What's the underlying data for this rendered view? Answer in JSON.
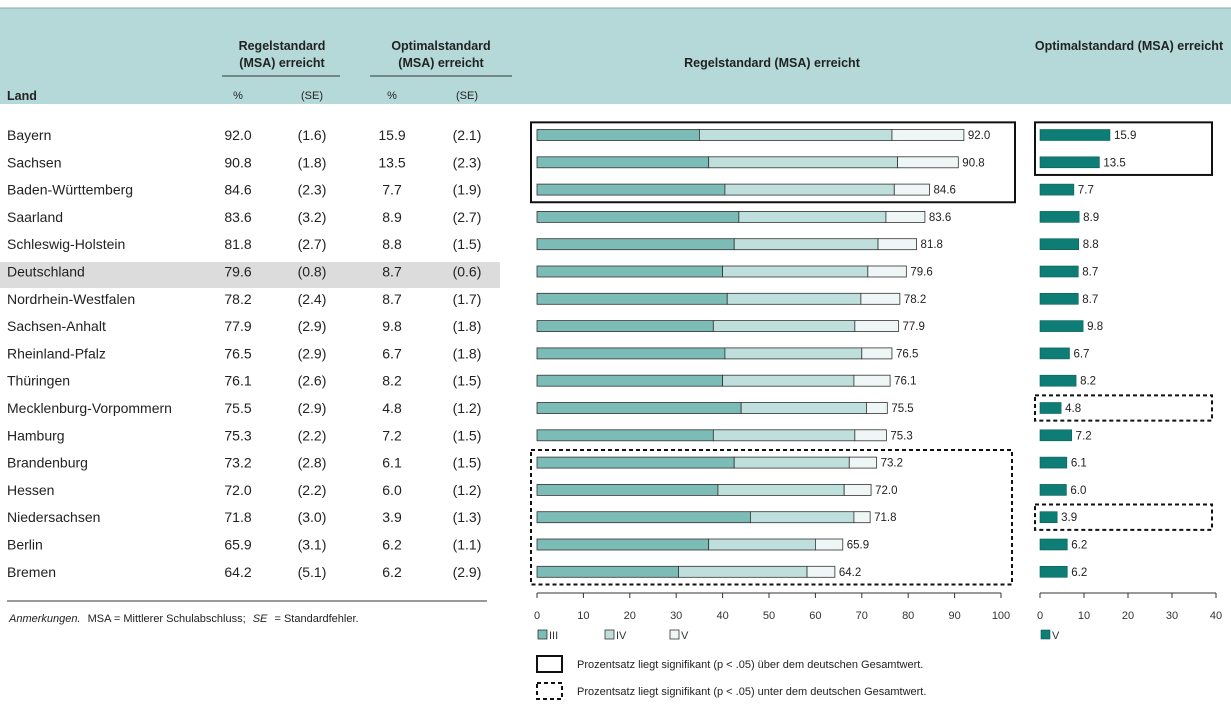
{
  "table": {
    "col_land": "Land",
    "col_regel": [
      "Regelstandard",
      "(MSA) erreicht"
    ],
    "col_optimal": [
      "Optimalstandard",
      "(MSA) erreicht"
    ],
    "pct": "%",
    "se": "(SE)",
    "highlight_row": "Deutschland",
    "rows": [
      {
        "land": "Bayern",
        "regel": "92.0",
        "regel_se": "(1.6)",
        "opt": "15.9",
        "opt_se": "(2.1)"
      },
      {
        "land": "Sachsen",
        "regel": "90.8",
        "regel_se": "(1.8)",
        "opt": "13.5",
        "opt_se": "(2.3)"
      },
      {
        "land": "Baden-Württemberg",
        "regel": "84.6",
        "regel_se": "(2.3)",
        "opt": "7.7",
        "opt_se": "(1.9)"
      },
      {
        "land": "Saarland",
        "regel": "83.6",
        "regel_se": "(3.2)",
        "opt": "8.9",
        "opt_se": "(2.7)"
      },
      {
        "land": "Schleswig-Holstein",
        "regel": "81.8",
        "regel_se": "(2.7)",
        "opt": "8.8",
        "opt_se": "(1.5)"
      },
      {
        "land": "Deutschland",
        "regel": "79.6",
        "regel_se": "(0.8)",
        "opt": "8.7",
        "opt_se": "(0.6)"
      },
      {
        "land": "Nordrhein-Westfalen",
        "regel": "78.2",
        "regel_se": "(2.4)",
        "opt": "8.7",
        "opt_se": "(1.7)"
      },
      {
        "land": "Sachsen-Anhalt",
        "regel": "77.9",
        "regel_se": "(2.9)",
        "opt": "9.8",
        "opt_se": "(1.8)"
      },
      {
        "land": "Rheinland-Pfalz",
        "regel": "76.5",
        "regel_se": "(2.9)",
        "opt": "6.7",
        "opt_se": "(1.8)"
      },
      {
        "land": "Thüringen",
        "regel": "76.1",
        "regel_se": "(2.6)",
        "opt": "8.2",
        "opt_se": "(1.5)"
      },
      {
        "land": "Mecklenburg-Vorpommern",
        "regel": "75.5",
        "regel_se": "(2.9)",
        "opt": "4.8",
        "opt_se": "(1.2)"
      },
      {
        "land": "Hamburg",
        "regel": "75.3",
        "regel_se": "(2.2)",
        "opt": "7.2",
        "opt_se": "(1.5)"
      },
      {
        "land": "Brandenburg",
        "regel": "73.2",
        "regel_se": "(2.8)",
        "opt": "6.1",
        "opt_se": "(1.5)"
      },
      {
        "land": "Hessen",
        "regel": "72.0",
        "regel_se": "(2.2)",
        "opt": "6.0",
        "opt_se": "(1.2)"
      },
      {
        "land": "Niedersachsen",
        "regel": "71.8",
        "regel_se": "(3.0)",
        "opt": "3.9",
        "opt_se": "(1.3)"
      },
      {
        "land": "Berlin",
        "regel": "65.9",
        "regel_se": "(3.1)",
        "opt": "6.2",
        "opt_se": "(1.1)"
      },
      {
        "land": "Bremen",
        "regel": "64.2",
        "regel_se": "(5.1)",
        "opt": "6.2",
        "opt_se": "(2.9)"
      }
    ],
    "note_italic": "Anmerkungen.",
    "note_text": "MSA = Mittlerer Schulabschluss;",
    "note_se": "SE",
    "note_rest": "= Standardfehler."
  },
  "chart_data": [
    {
      "type": "bar",
      "stacked": true,
      "orientation": "horizontal",
      "title": "Regelstandard (MSA) erreicht",
      "categories": [
        "Bayern",
        "Sachsen",
        "Baden-Württemberg",
        "Saarland",
        "Schleswig-Holstein",
        "Deutschland",
        "Nordrhein-Westfalen",
        "Sachsen-Anhalt",
        "Rheinland-Pfalz",
        "Thüringen",
        "Mecklenburg-Vorpommern",
        "Hamburg",
        "Brandenburg",
        "Hessen",
        "Niedersachsen",
        "Berlin",
        "Bremen"
      ],
      "series": [
        {
          "name": "III",
          "color": "#7bbcb6",
          "values": [
            35.0,
            37.0,
            40.5,
            43.5,
            42.5,
            40.0,
            41.0,
            38.0,
            40.5,
            40.0,
            44.0,
            38.0,
            42.5,
            39.0,
            46.0,
            37.0,
            30.5
          ]
        },
        {
          "name": "IV",
          "color": "#bfdfdc",
          "values": [
            41.5,
            40.7,
            36.5,
            31.7,
            31.0,
            31.3,
            28.8,
            30.5,
            29.5,
            28.3,
            27.0,
            30.5,
            24.8,
            27.2,
            22.3,
            23.0,
            27.7
          ]
        },
        {
          "name": "V",
          "color": "#eef7f6",
          "values": [
            15.5,
            13.1,
            7.6,
            8.4,
            8.3,
            8.3,
            8.4,
            9.4,
            6.5,
            7.8,
            4.5,
            6.8,
            5.9,
            5.8,
            3.5,
            5.9,
            6.0
          ]
        }
      ],
      "totals": [
        "92.0",
        "90.8",
        "84.6",
        "83.6",
        "81.8",
        "79.6",
        "78.2",
        "77.9",
        "76.5",
        "76.1",
        "75.5",
        "75.3",
        "73.2",
        "72.0",
        "71.8",
        "65.9",
        "64.2"
      ],
      "xlim": [
        0,
        100
      ],
      "xticks": [
        "0",
        "10",
        "20",
        "30",
        "40",
        "50",
        "60",
        "70",
        "80",
        "90",
        "100"
      ],
      "significant_above": [
        "Bayern",
        "Sachsen",
        "Baden-Württemberg"
      ],
      "significant_below": [
        "Brandenburg",
        "Hessen",
        "Niedersachsen",
        "Berlin",
        "Bremen"
      ]
    },
    {
      "type": "bar",
      "orientation": "horizontal",
      "title": "Optimalstandard (MSA) erreicht",
      "categories": [
        "Bayern",
        "Sachsen",
        "Baden-Württemberg",
        "Saarland",
        "Schleswig-Holstein",
        "Deutschland",
        "Nordrhein-Westfalen",
        "Sachsen-Anhalt",
        "Rheinland-Pfalz",
        "Thüringen",
        "Mecklenburg-Vorpommern",
        "Hamburg",
        "Brandenburg",
        "Hessen",
        "Niedersachsen",
        "Berlin",
        "Bremen"
      ],
      "series": [
        {
          "name": "V",
          "color": "#0e7d76",
          "values": [
            15.9,
            13.5,
            7.7,
            8.9,
            8.8,
            8.7,
            8.7,
            9.8,
            6.7,
            8.2,
            4.8,
            7.2,
            6.1,
            6.0,
            3.9,
            6.2,
            6.2
          ]
        }
      ],
      "labels": [
        "15.9",
        "13.5",
        "7.7",
        "8.9",
        "8.8",
        "8.7",
        "8.7",
        "9.8",
        "6.7",
        "8.2",
        "4.8",
        "7.2",
        "6.1",
        "6.0",
        "3.9",
        "6.2",
        "6.2"
      ],
      "xlim": [
        0,
        40
      ],
      "xticks": [
        "0",
        "10",
        "20",
        "30",
        "40"
      ],
      "significant_above": [
        "Bayern",
        "Sachsen"
      ],
      "significant_below": [
        "Mecklenburg-Vorpommern",
        "Niedersachsen"
      ]
    }
  ],
  "legend": {
    "above": "Prozentsatz liegt signifikant (p < .05) über dem deutschen Gesamtwert.",
    "below": "Prozentsatz liegt signifikant (p < .05) unter dem deutschen Gesamtwert."
  },
  "colors": {
    "header_bg": "#b5d9d8",
    "row_highlight": "#dcdcdc"
  }
}
